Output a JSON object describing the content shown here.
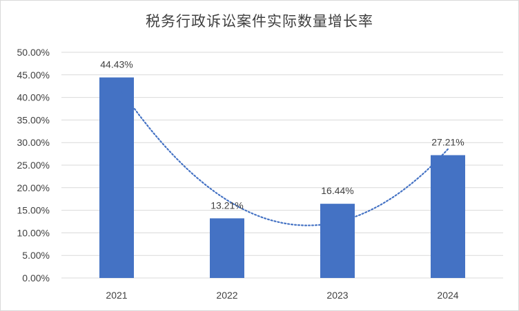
{
  "chart_data": {
    "type": "bar",
    "title": "税务行政诉讼案件实际数量增长率",
    "categories": [
      "2021",
      "2022",
      "2023",
      "2024"
    ],
    "values": [
      44.43,
      13.21,
      16.44,
      27.21
    ],
    "data_labels": [
      "44.43%",
      "13.21%",
      "16.44%",
      "27.21%"
    ],
    "ylim": [
      0,
      50
    ],
    "yticks": [
      "0.00%",
      "5.00%",
      "10.00%",
      "15.00%",
      "20.00%",
      "25.00%",
      "30.00%",
      "35.00%",
      "40.00%",
      "45.00%",
      "50.00%"
    ],
    "grid": true,
    "trendline": "polynomial, dotted",
    "colors": {
      "bar": "#4472c4",
      "trend": "#4472c4",
      "grid": "#d9d9d9",
      "text": "#404040"
    }
  }
}
